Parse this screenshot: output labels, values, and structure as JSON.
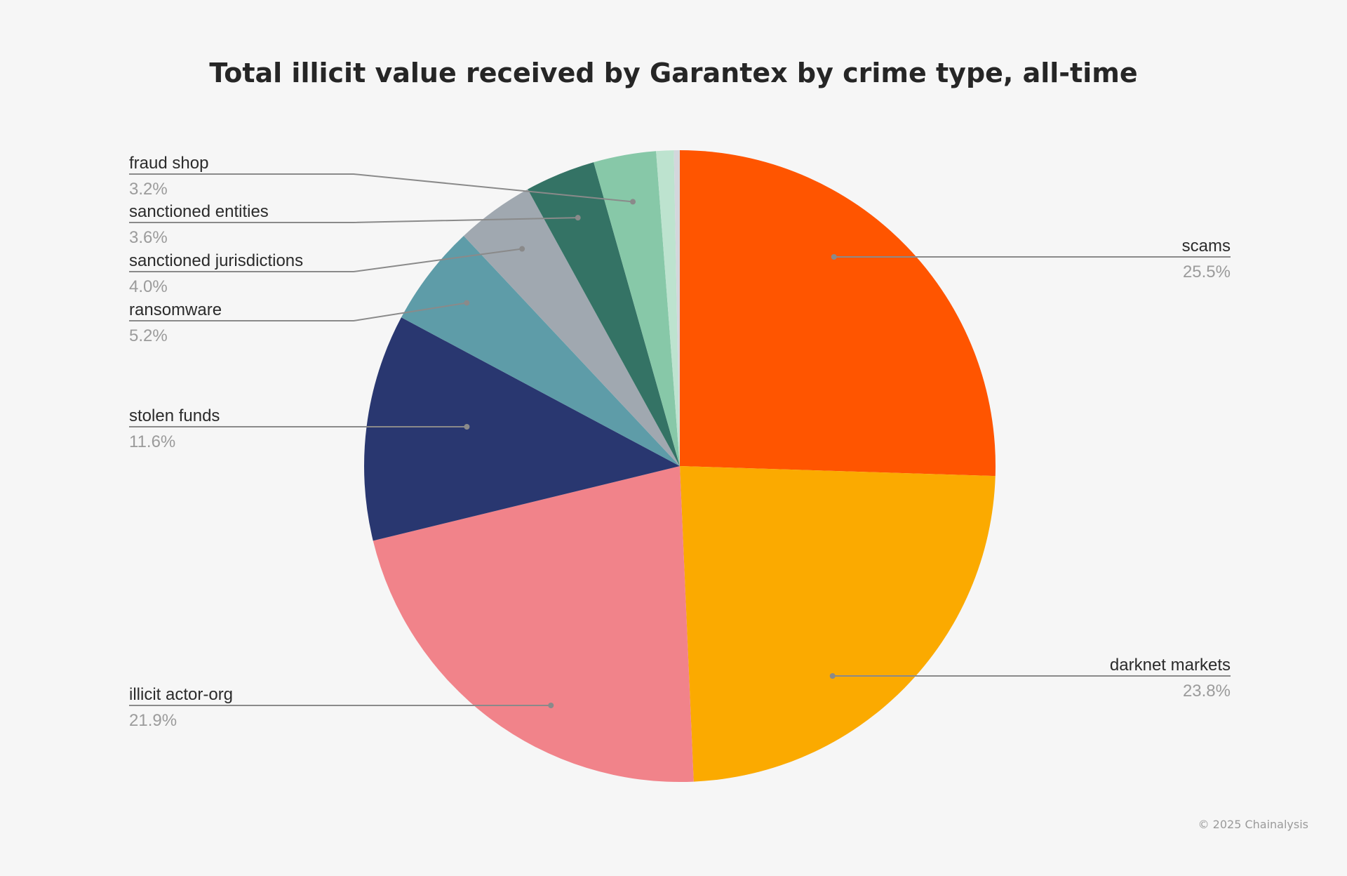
{
  "title": "Total illicit value received by Garantex by crime type, all-time",
  "credit": "© 2025 Chainalysis",
  "chart_data": {
    "type": "pie",
    "title": "Total illicit value received by Garantex by crime type, all-time",
    "start": "12 o'clock",
    "direction": "clockwise",
    "slices": [
      {
        "name": "scams",
        "pct_label": "25.5%",
        "value": 25.5,
        "color": "#ff5500",
        "label_side": "right"
      },
      {
        "name": "darknet markets",
        "pct_label": "23.8%",
        "value": 23.8,
        "color": "#fbaa00",
        "label_side": "right"
      },
      {
        "name": "illicit actor-org",
        "pct_label": "21.9%",
        "value": 21.9,
        "color": "#f1838a",
        "label_side": "left"
      },
      {
        "name": "stolen funds",
        "pct_label": "11.6%",
        "value": 11.6,
        "color": "#293770",
        "label_side": "left"
      },
      {
        "name": "ransomware",
        "pct_label": "5.2%",
        "value": 5.2,
        "color": "#5e9ca8",
        "label_side": "left"
      },
      {
        "name": "sanctioned jurisdictions",
        "pct_label": "4.0%",
        "value": 4.0,
        "color": "#a0a8b0",
        "label_side": "left"
      },
      {
        "name": "sanctioned entities",
        "pct_label": "3.6%",
        "value": 3.6,
        "color": "#347365",
        "label_side": "left"
      },
      {
        "name": "fraud shop",
        "pct_label": "3.2%",
        "value": 3.2,
        "color": "#87c8a8",
        "label_side": "left"
      },
      {
        "name": "",
        "value": 0.9,
        "color": "#bde3cf",
        "label_side": "none"
      },
      {
        "name": "",
        "value": 0.3,
        "color": "#d3d7dc",
        "label_side": "none"
      }
    ]
  }
}
